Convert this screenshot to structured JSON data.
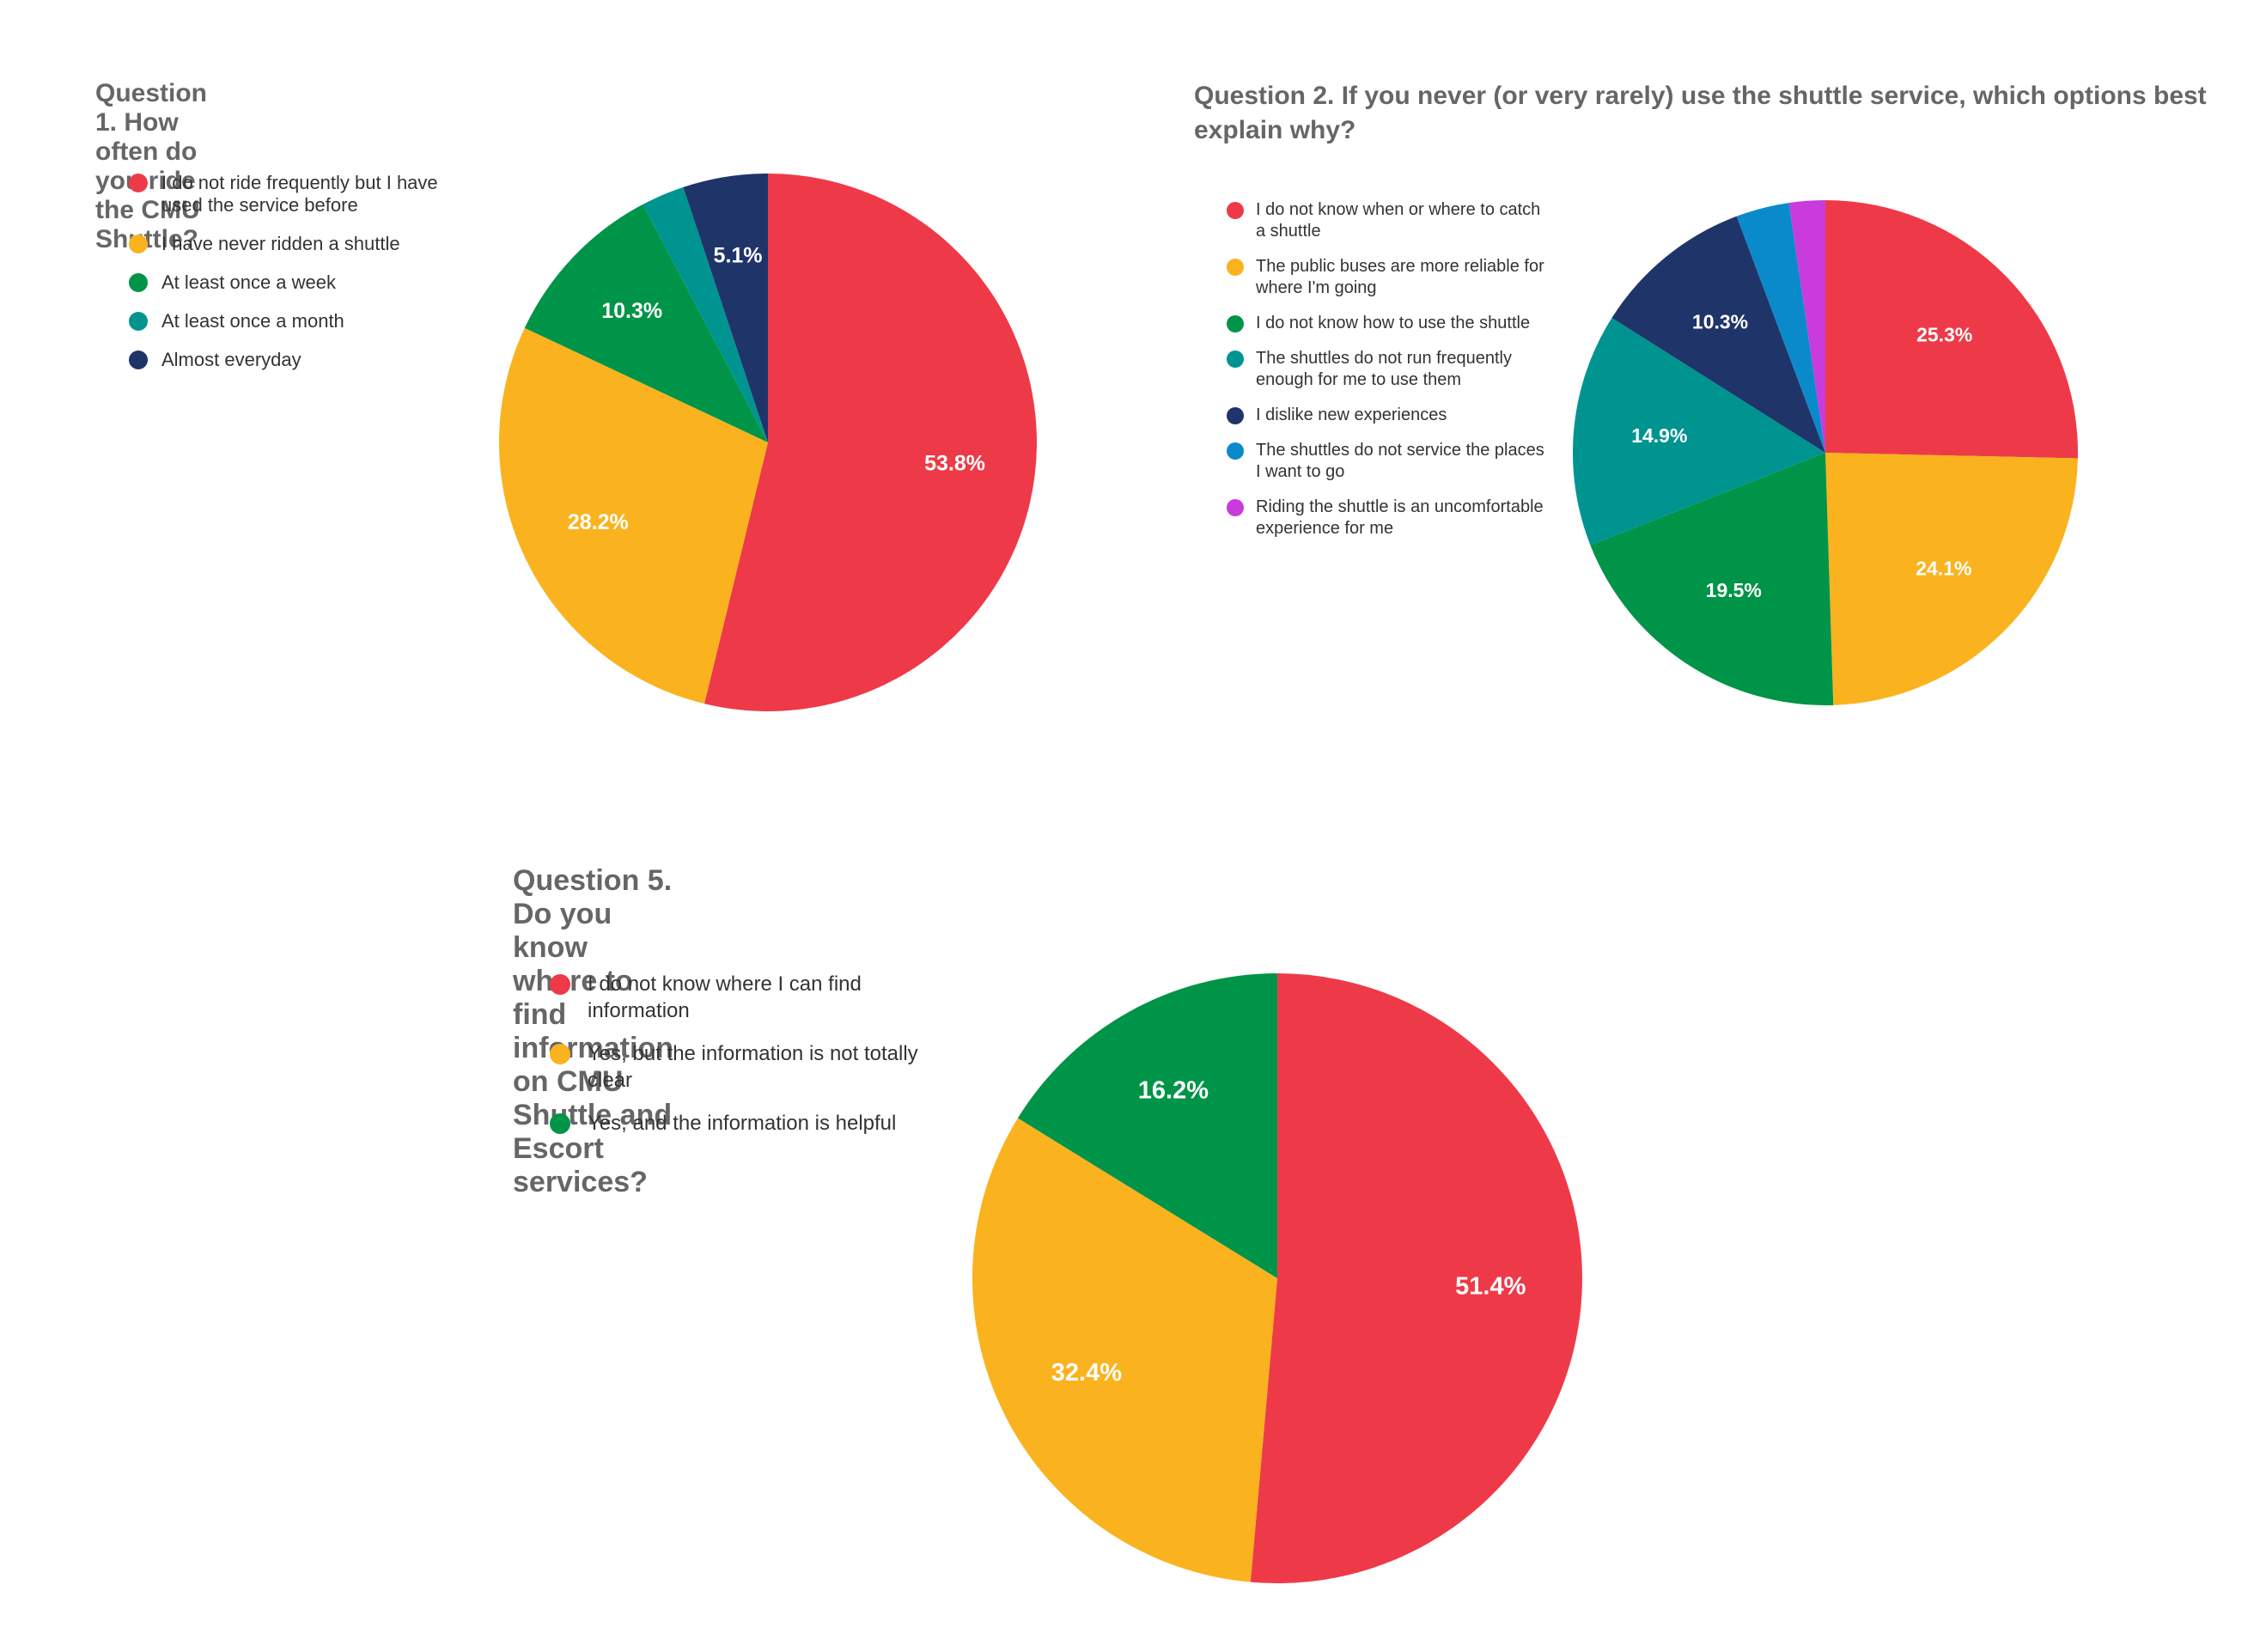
{
  "chart_data": [
    {
      "id": "q1",
      "type": "pie",
      "title": "Question 1. How often do you ride the CMU Shuttle?",
      "categories": [
        "I do not ride frequently but I have used the service before",
        "I have never ridden a shuttle",
        "At least once a week",
        "At least once a month",
        "Almost everyday"
      ],
      "values": [
        53.8,
        28.2,
        10.3,
        2.6,
        5.1
      ],
      "labels": [
        "53.8%",
        "28.2%",
        "10.3%",
        "",
        "5.1%"
      ],
      "colors": [
        "#EE3A48",
        "#FAB31E",
        "#009448",
        "#009491",
        "#1F3469"
      ],
      "legend_position": "left"
    },
    {
      "id": "q2",
      "type": "pie",
      "title": "Question 2. If you never (or very rarely) use the shuttle service, which options best explain why?",
      "categories": [
        "I do not know when or where to catch a shuttle",
        "The public buses are more reliable for where I'm going",
        "I do not know how to use the shuttle",
        "The shuttles do not run frequently enough for me to use them",
        "I dislike new experiences",
        "The shuttles do not service the places I want to go",
        "Riding the shuttle is an uncomfortable experience for me"
      ],
      "values": [
        25.3,
        24.1,
        19.5,
        14.9,
        10.3,
        3.4,
        2.3
      ],
      "labels": [
        "25.3%",
        "24.1%",
        "19.5%",
        "14.9%",
        "10.3%",
        "",
        ""
      ],
      "colors": [
        "#EE3A48",
        "#FAB31E",
        "#009448",
        "#009491",
        "#1F3469",
        "#0B8ACB",
        "#C93BDD"
      ],
      "legend_position": "left"
    },
    {
      "id": "q5",
      "type": "pie",
      "title": "Question 5. Do you know where to find information on CMU Shuttle and Escort services?",
      "categories": [
        "I do not know where I can find information",
        "Yes, but the information is not totally clear",
        "Yes, and the information is helpful"
      ],
      "values": [
        51.4,
        32.4,
        16.2
      ],
      "labels": [
        "51.4%",
        "32.4%",
        "16.2%"
      ],
      "colors": [
        "#EE3A48",
        "#FAB31E",
        "#009448"
      ],
      "legend_position": "left"
    }
  ]
}
